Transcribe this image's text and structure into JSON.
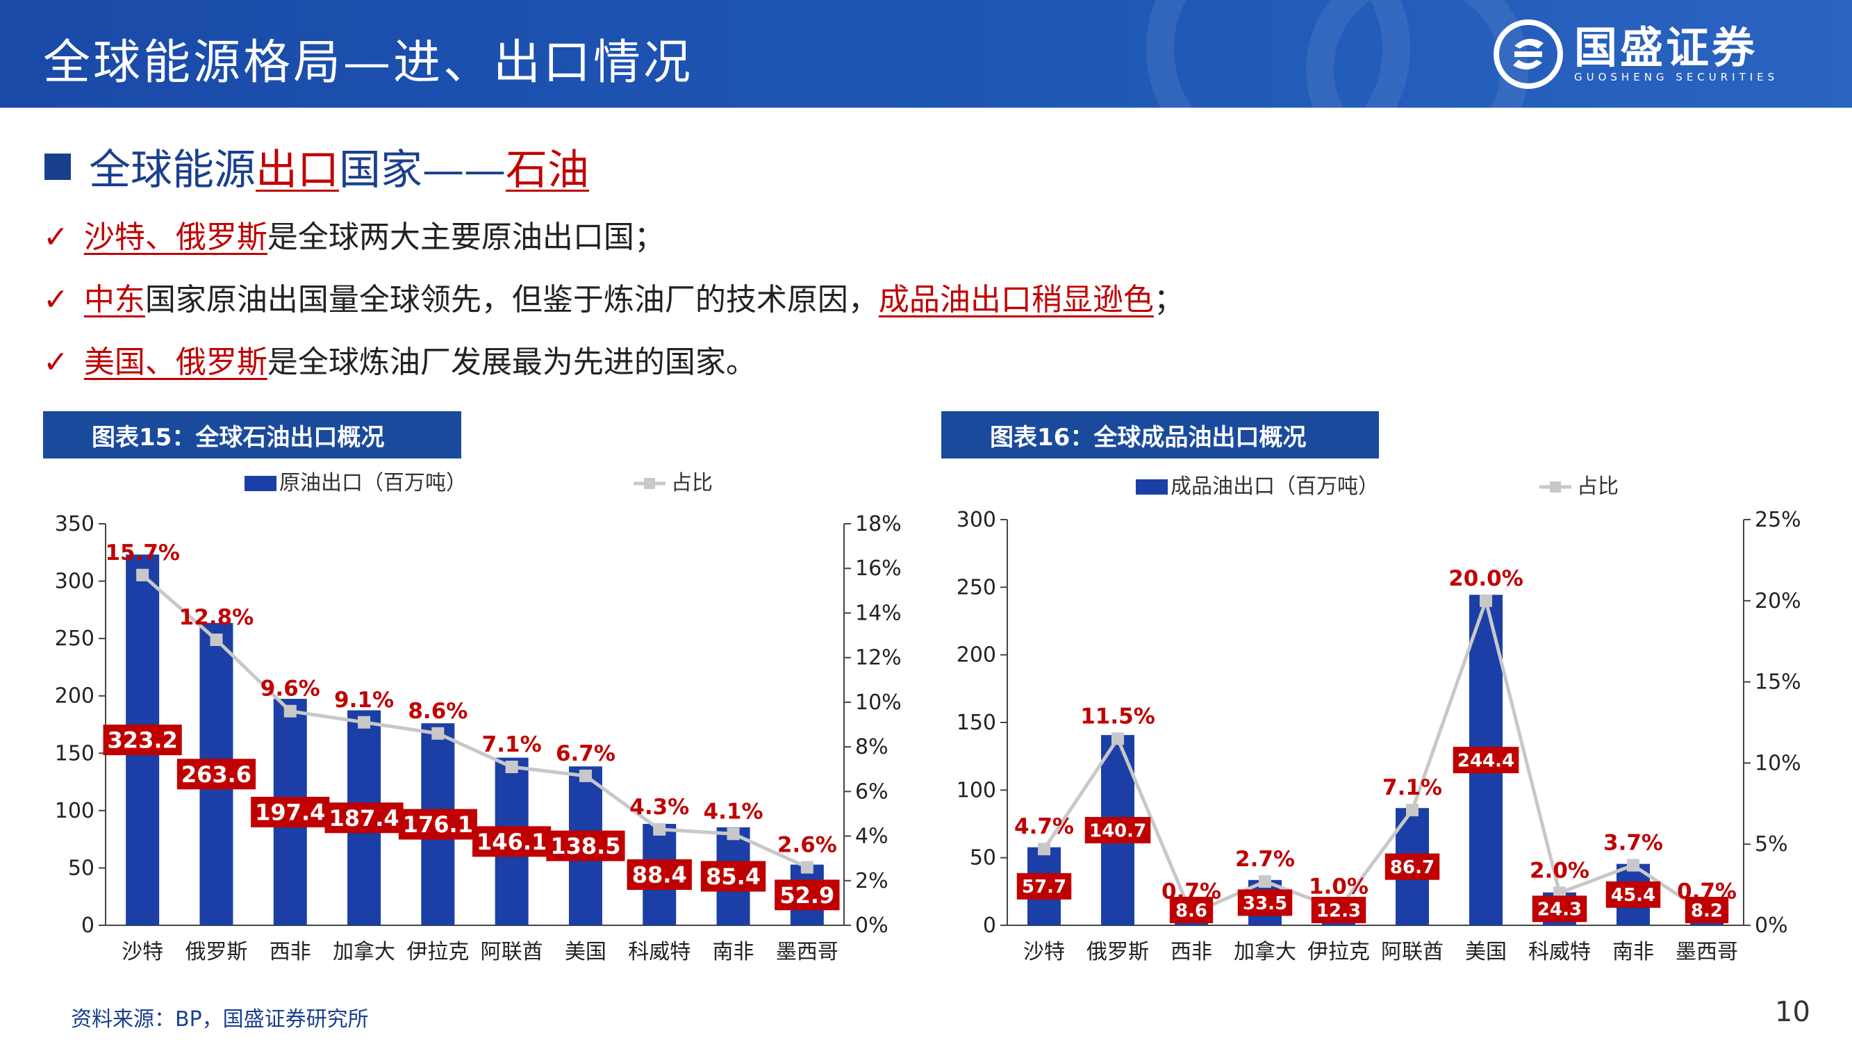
{
  "header": {
    "title": "全球能源格局—进、出口情况",
    "logo_cn": "国盛证券",
    "logo_en": "GUOSHENG SECURITIES"
  },
  "section": {
    "prefix": "全球能源",
    "highlight1": "出口",
    "middle": "国家——",
    "highlight2": "石油"
  },
  "bullets": [
    {
      "check": "✓",
      "hl": "沙特、俄罗斯",
      "text": "是全球两大主要原油出口国；",
      "hl2": "",
      "tail": ""
    },
    {
      "check": "✓",
      "hl": "中东",
      "text": "国家原油出国量全球领先，但鉴于炼油厂的技术原因，",
      "hl2": "成品油出口稍显逊色",
      "tail": "；"
    },
    {
      "check": "✓",
      "hl": "美国、俄罗斯",
      "text": "是全球炼油厂发展最为先进的国家。",
      "hl2": "",
      "tail": ""
    }
  ],
  "captions": {
    "chart1": "图表15：全球石油出口概况",
    "chart2": "图表16：全球成品油出口概况"
  },
  "colors": {
    "bar": "#1b3fa6",
    "line": "#c8c8c8",
    "label_bg": "#c00000",
    "pct_text": "#c00000",
    "heading": "#1a3f8f",
    "header_bg": "#1f57b5"
  },
  "chart_data": [
    {
      "type": "bar",
      "categories": [
        "沙特",
        "俄罗斯",
        "西非",
        "加拿大",
        "伊拉克",
        "阿联酋",
        "美国",
        "科威特",
        "南非",
        "墨西哥"
      ],
      "series": [
        {
          "name": "原油出口（百万吨）",
          "type": "bar",
          "axis": "left",
          "values": [
            323.2,
            263.6,
            197.4,
            187.4,
            176.1,
            146.1,
            138.5,
            88.4,
            85.4,
            52.9
          ],
          "labels": [
            "323.2",
            "263.6",
            "197.4",
            "187.4",
            "176.1",
            "146.1",
            "138.5",
            "88.4",
            "85.4",
            "52.9"
          ]
        },
        {
          "name": "占比",
          "type": "line",
          "axis": "right",
          "values": [
            15.7,
            12.8,
            9.6,
            9.1,
            8.6,
            7.1,
            6.7,
            4.3,
            4.1,
            2.6
          ],
          "labels": [
            "15.7%",
            "12.8%",
            "9.6%",
            "9.1%",
            "8.6%",
            "7.1%",
            "6.7%",
            "4.3%",
            "4.1%",
            "2.6%"
          ]
        }
      ],
      "ylim_left": [
        0,
        350
      ],
      "yticks_left": [
        "0",
        "50",
        "100",
        "150",
        "200",
        "250",
        "300",
        "350"
      ],
      "ylim_right": [
        0,
        18
      ],
      "yticks_right": [
        "0%",
        "2%",
        "4%",
        "6%",
        "8%",
        "10%",
        "12%",
        "14%",
        "16%",
        "18%"
      ],
      "legend": "top",
      "grid": false
    },
    {
      "type": "bar",
      "categories": [
        "沙特",
        "俄罗斯",
        "西非",
        "加拿大",
        "伊拉克",
        "阿联酋",
        "美国",
        "科威特",
        "南非",
        "墨西哥"
      ],
      "series": [
        {
          "name": "成品油出口（百万吨）",
          "type": "bar",
          "axis": "left",
          "values": [
            57.7,
            140.7,
            8.6,
            33.5,
            12.3,
            86.7,
            244.4,
            24.3,
            45.4,
            8.2
          ],
          "labels": [
            "57.7",
            "140.7",
            "8.6",
            "33.5",
            "12.3",
            "86.7",
            "244.4",
            "24.3",
            "45.4",
            "8.2"
          ]
        },
        {
          "name": "占比",
          "type": "line",
          "axis": "right",
          "values": [
            4.7,
            11.5,
            0.7,
            2.7,
            1.0,
            7.1,
            20.0,
            2.0,
            3.7,
            0.7
          ],
          "labels": [
            "4.7%",
            "11.5%",
            "0.7%",
            "2.7%",
            "1.0%",
            "7.1%",
            "20.0%",
            "2.0%",
            "3.7%",
            "0.7%"
          ]
        }
      ],
      "ylim_left": [
        0,
        300
      ],
      "yticks_left": [
        "0",
        "50",
        "100",
        "150",
        "200",
        "250",
        "300"
      ],
      "ylim_right": [
        0,
        25
      ],
      "yticks_right": [
        "0%",
        "5%",
        "10%",
        "15%",
        "20%",
        "25%"
      ],
      "legend": "top",
      "grid": false
    }
  ],
  "footer": {
    "source": "资料来源：BP，国盛证券研究所",
    "page": "10"
  }
}
